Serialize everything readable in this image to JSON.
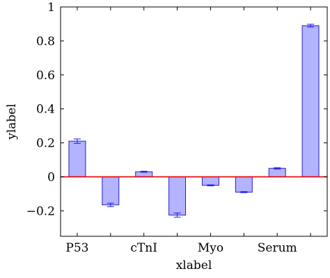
{
  "chart_data": {
    "type": "bar",
    "xlabel": "xlabel",
    "ylabel": "ylabel",
    "ylim": [
      -0.35,
      1.0
    ],
    "yticks": [
      -0.2,
      0,
      0.2,
      0.4,
      0.6,
      0.8,
      1
    ],
    "ytick_labels": [
      "−0.2",
      "0",
      "0.2",
      "0.4",
      "0.6",
      "0.8",
      "1"
    ],
    "xtick_labels": [
      "P53",
      "cTnI",
      "Myo",
      "Serum"
    ],
    "xtick_positions": [
      1,
      3,
      5,
      7
    ],
    "grid": false,
    "bar_fill": "#b3b3ff",
    "bar_edge": "#2020c0",
    "error_color": "#1a1aff",
    "zero_line_color": "#e60000",
    "bars": [
      {
        "x": 1,
        "value": 0.21,
        "error": 0.013
      },
      {
        "x": 2,
        "value": -0.165,
        "error": 0.01
      },
      {
        "x": 3,
        "value": 0.03,
        "error": 0.003
      },
      {
        "x": 4,
        "value": -0.225,
        "error": 0.012
      },
      {
        "x": 5,
        "value": -0.05,
        "error": 0.003
      },
      {
        "x": 6,
        "value": -0.09,
        "error": 0.003
      },
      {
        "x": 7,
        "value": 0.05,
        "error": 0.004
      },
      {
        "x": 8,
        "value": 0.89,
        "error": 0.008
      }
    ]
  }
}
